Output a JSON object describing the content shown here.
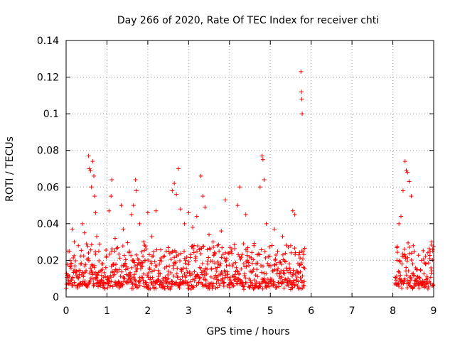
{
  "chart_data": {
    "type": "scatter",
    "title": "Day 266 of 2020, Rate Of TEC Index for receiver chti",
    "xlabel": "GPS time / hours",
    "ylabel": "ROTI / TECUs",
    "xlim": [
      0,
      9
    ],
    "ylim": [
      0,
      0.14
    ],
    "xticks": [
      0,
      1,
      2,
      3,
      4,
      5,
      6,
      7,
      8,
      9
    ],
    "yticks": [
      0,
      0.02,
      0.04,
      0.06,
      0.08,
      0.1,
      0.12,
      0.14
    ],
    "ytick_labels": [
      "0",
      "0.02",
      "0.04",
      "0.06",
      "0.08",
      "0.1",
      "0.12",
      "0.14"
    ],
    "grid": true,
    "marker": "+",
    "color": "#ff0000",
    "coverage_hours": [
      [
        0,
        5.85
      ],
      [
        8.05,
        9.0
      ]
    ],
    "gap_hours": [
      5.85,
      8.05
    ],
    "series": [
      {
        "name": "ROTI",
        "points": [
          [
            0.05,
            0.012
          ],
          [
            0.1,
            0.02
          ],
          [
            0.15,
            0.037
          ],
          [
            0.2,
            0.03
          ],
          [
            0.25,
            0.014
          ],
          [
            0.3,
            0.028
          ],
          [
            0.35,
            0.018
          ],
          [
            0.4,
            0.04
          ],
          [
            0.45,
            0.035
          ],
          [
            0.5,
            0.029
          ],
          [
            0.55,
            0.077
          ],
          [
            0.57,
            0.07
          ],
          [
            0.6,
            0.069
          ],
          [
            0.62,
            0.06
          ],
          [
            0.65,
            0.074
          ],
          [
            0.68,
            0.066
          ],
          [
            0.7,
            0.055
          ],
          [
            0.72,
            0.046
          ],
          [
            0.75,
            0.033
          ],
          [
            0.8,
            0.025
          ],
          [
            0.9,
            0.018
          ],
          [
            1.05,
            0.047
          ],
          [
            1.1,
            0.055
          ],
          [
            1.12,
            0.064
          ],
          [
            1.2,
            0.032
          ],
          [
            1.3,
            0.015
          ],
          [
            1.35,
            0.05
          ],
          [
            1.4,
            0.037
          ],
          [
            1.55,
            0.025
          ],
          [
            1.6,
            0.045
          ],
          [
            1.65,
            0.05
          ],
          [
            1.7,
            0.064
          ],
          [
            1.72,
            0.058
          ],
          [
            1.8,
            0.04
          ],
          [
            1.9,
            0.03
          ],
          [
            2.0,
            0.046
          ],
          [
            2.1,
            0.033
          ],
          [
            2.2,
            0.047
          ],
          [
            2.3,
            0.02
          ],
          [
            2.5,
            0.027
          ],
          [
            2.6,
            0.058
          ],
          [
            2.65,
            0.062
          ],
          [
            2.7,
            0.056
          ],
          [
            2.75,
            0.07
          ],
          [
            2.8,
            0.048
          ],
          [
            2.9,
            0.04
          ],
          [
            3.0,
            0.046
          ],
          [
            3.1,
            0.038
          ],
          [
            3.2,
            0.044
          ],
          [
            3.3,
            0.066
          ],
          [
            3.35,
            0.055
          ],
          [
            3.4,
            0.049
          ],
          [
            3.5,
            0.034
          ],
          [
            3.6,
            0.03
          ],
          [
            3.7,
            0.028
          ],
          [
            3.8,
            0.036
          ],
          [
            3.9,
            0.053
          ],
          [
            4.0,
            0.024
          ],
          [
            4.2,
            0.05
          ],
          [
            4.25,
            0.06
          ],
          [
            4.4,
            0.045
          ],
          [
            4.6,
            0.028
          ],
          [
            4.75,
            0.06
          ],
          [
            4.8,
            0.077
          ],
          [
            4.82,
            0.075
          ],
          [
            4.85,
            0.064
          ],
          [
            4.9,
            0.04
          ],
          [
            5.1,
            0.037
          ],
          [
            5.3,
            0.033
          ],
          [
            5.5,
            0.028
          ],
          [
            5.55,
            0.047
          ],
          [
            5.6,
            0.045
          ],
          [
            5.7,
            0.023
          ],
          [
            5.75,
            0.123
          ],
          [
            5.76,
            0.112
          ],
          [
            5.77,
            0.108
          ],
          [
            5.78,
            0.1
          ],
          [
            5.8,
            0.025
          ],
          [
            8.1,
            0.02
          ],
          [
            8.15,
            0.04
          ],
          [
            8.2,
            0.044
          ],
          [
            8.25,
            0.058
          ],
          [
            8.3,
            0.074
          ],
          [
            8.33,
            0.069
          ],
          [
            8.36,
            0.068
          ],
          [
            8.4,
            0.063
          ],
          [
            8.45,
            0.055
          ],
          [
            8.5,
            0.028
          ],
          [
            8.6,
            0.015
          ],
          [
            8.8,
            0.018
          ],
          [
            8.95,
            0.03
          ],
          [
            8.97,
            0.025
          ]
        ]
      }
    ]
  }
}
